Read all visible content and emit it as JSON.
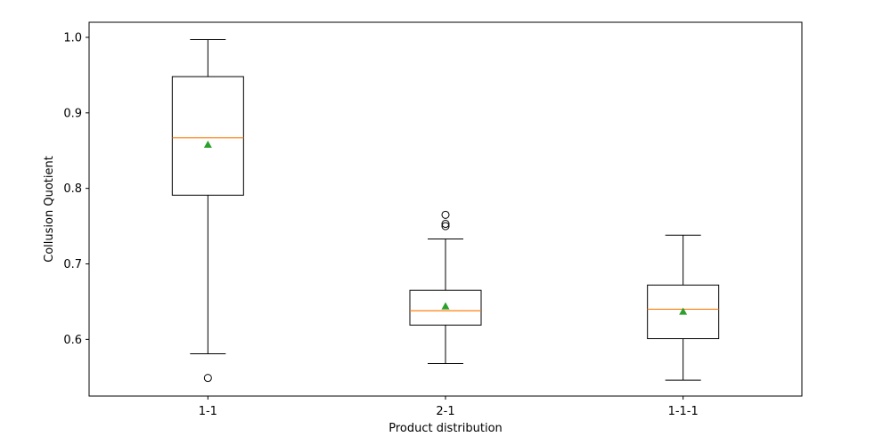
{
  "chart_data": {
    "type": "box",
    "xlabel": "Product distribution",
    "ylabel": "Collusion Quotient",
    "ylim": [
      0.525,
      1.02
    ],
    "yticks": [
      "0.6",
      "0.7",
      "0.8",
      "0.9",
      "1.0"
    ],
    "categories": [
      "1-1",
      "2-1",
      "1-1-1"
    ],
    "boxes": [
      {
        "label": "1-1",
        "whisker_low": 0.581,
        "q1": 0.791,
        "median": 0.867,
        "q3": 0.948,
        "whisker_high": 0.997,
        "mean": 0.858,
        "outliers": [
          0.549
        ]
      },
      {
        "label": "2-1",
        "whisker_low": 0.568,
        "q1": 0.619,
        "median": 0.638,
        "q3": 0.665,
        "whisker_high": 0.733,
        "mean": 0.644,
        "outliers": [
          0.75,
          0.753,
          0.765
        ]
      },
      {
        "label": "1-1-1",
        "whisker_low": 0.546,
        "q1": 0.601,
        "median": 0.64,
        "q3": 0.672,
        "whisker_high": 0.738,
        "mean": 0.637,
        "outliers": []
      }
    ],
    "colors": {
      "box": "#000000",
      "median": "#ff7f0e",
      "mean": "#2ca02c"
    },
    "grid": false
  }
}
